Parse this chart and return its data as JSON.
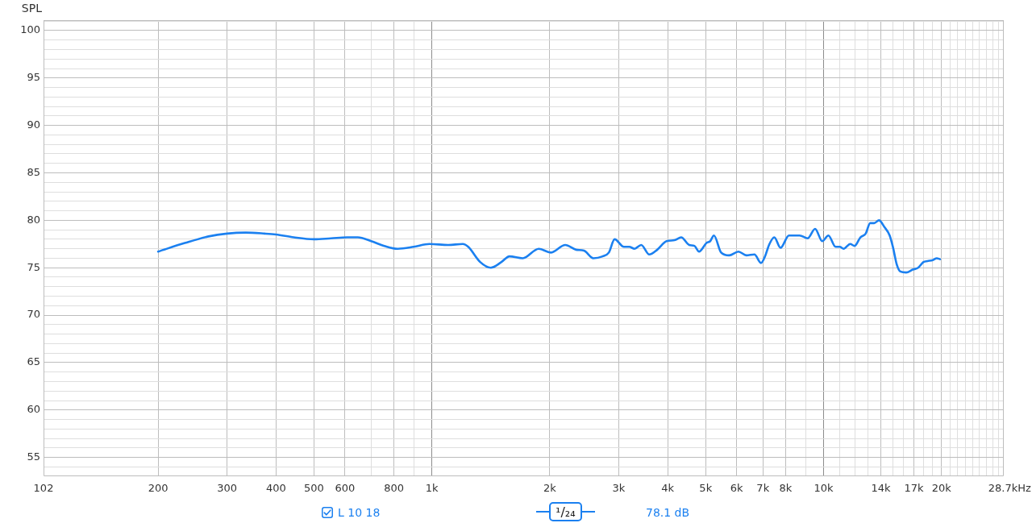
{
  "chart_data": {
    "type": "line",
    "ylabel": "SPL",
    "xlabel": "Hz",
    "log": "x",
    "grid": true,
    "legend": "bottom",
    "marker": "none",
    "line_style": "solid",
    "xlim": [
      102,
      28700
    ],
    "ylim": [
      53.1,
      101.1
    ],
    "xticks": [
      102,
      200,
      300,
      400,
      500,
      600,
      {
        "value": 700,
        "label": null
      },
      800,
      {
        "value": 900,
        "label": null
      },
      {
        "value": 1000,
        "label": "1k"
      },
      {
        "value": 2000,
        "label": "2k"
      },
      {
        "value": 3000,
        "label": "3k"
      },
      {
        "value": 4000,
        "label": "4k"
      },
      {
        "value": 5000,
        "label": "5k"
      },
      {
        "value": 6000,
        "label": "6k"
      },
      {
        "value": 7000,
        "label": "7k"
      },
      {
        "value": 8000,
        "label": "8k"
      },
      {
        "value": 9000,
        "label": null
      },
      {
        "value": 10000,
        "label": "10k"
      },
      {
        "value": 11000,
        "label": null
      },
      {
        "value": 12000,
        "label": null
      },
      {
        "value": 13000,
        "label": null
      },
      {
        "value": 14000,
        "label": "14k"
      },
      {
        "value": 15000,
        "label": null
      },
      {
        "value": 16000,
        "label": null
      },
      {
        "value": 17000,
        "label": "17k"
      },
      {
        "value": 18000,
        "label": null
      },
      {
        "value": 19000,
        "label": null
      },
      {
        "value": 20000,
        "label": "20k"
      },
      {
        "value": 21000,
        "label": null
      },
      {
        "value": 22000,
        "label": null
      },
      {
        "value": 23000,
        "label": null
      },
      {
        "value": 24000,
        "label": null
      },
      {
        "value": 25000,
        "label": null
      },
      {
        "value": 26000,
        "label": null
      },
      {
        "value": 27000,
        "label": null
      },
      {
        "value": 28000,
        "label": null
      },
      {
        "value": 28700,
        "label": "28.7k"
      }
    ],
    "yticks": [
      {
        "value": 54,
        "label": null
      },
      55,
      {
        "value": 56,
        "label": null
      },
      {
        "value": 57,
        "label": null
      },
      {
        "value": 58,
        "label": null
      },
      {
        "value": 59,
        "label": null
      },
      60,
      {
        "value": 61,
        "label": null
      },
      {
        "value": 62,
        "label": null
      },
      {
        "value": 63,
        "label": null
      },
      {
        "value": 64,
        "label": null
      },
      65,
      {
        "value": 66,
        "label": null
      },
      {
        "value": 67,
        "label": null
      },
      {
        "value": 68,
        "label": null
      },
      {
        "value": 69,
        "label": null
      },
      70,
      {
        "value": 71,
        "label": null
      },
      {
        "value": 72,
        "label": null
      },
      {
        "value": 73,
        "label": null
      },
      {
        "value": 74,
        "label": null
      },
      75,
      {
        "value": 76,
        "label": null
      },
      {
        "value": 77,
        "label": null
      },
      {
        "value": 78,
        "label": null
      },
      {
        "value": 79,
        "label": null
      },
      80,
      {
        "value": 81,
        "label": null
      },
      {
        "value": 82,
        "label": null
      },
      {
        "value": 83,
        "label": null
      },
      {
        "value": 84,
        "label": null
      },
      85,
      {
        "value": 86,
        "label": null
      },
      {
        "value": 87,
        "label": null
      },
      {
        "value": 88,
        "label": null
      },
      {
        "value": 89,
        "label": null
      },
      90,
      {
        "value": 91,
        "label": null
      },
      {
        "value": 92,
        "label": null
      },
      {
        "value": 93,
        "label": null
      },
      {
        "value": 94,
        "label": null
      },
      95,
      {
        "value": 96,
        "label": null
      },
      {
        "value": 97,
        "label": null
      },
      {
        "value": 98,
        "label": null
      },
      {
        "value": 99,
        "label": null
      },
      100,
      {
        "value": 101,
        "label": null
      }
    ],
    "x": [
      200,
      234,
      269,
      300,
      335,
      374,
      400,
      444,
      500,
      553,
      607,
      647,
      700,
      756,
      818,
      898,
      986,
      1101,
      1199,
      1238,
      1328,
      1413,
      1505,
      1578,
      1706,
      1874,
      2010,
      2191,
      2333,
      2445,
      2583,
      2728,
      2830,
      2927,
      3092,
      3191,
      3291,
      3423,
      3588,
      3761,
      3972,
      4163,
      4329,
      4538,
      4680,
      4808,
      5023,
      5135,
      5248,
      5475,
      5739,
      6061,
      6352,
      6658,
      6924,
      7088,
      7256,
      7484,
      7762,
      8157,
      8551,
      8686,
      9104,
      9511,
      9920,
      10285,
      10730,
      11000,
      11246,
      11695,
      12000,
      12413,
      12808,
      13150,
      13462,
      13849,
      14288,
      14745,
      15027,
      15382,
      15697,
      16243,
      16896,
      17430,
      17985,
      18413,
      18998,
      19450,
      19818
    ],
    "series": [
      {
        "name": "L 10 18",
        "color": "#1b80f0",
        "values": [
          76.7,
          77.6,
          78.3,
          78.6,
          78.7,
          78.6,
          78.5,
          78.2,
          78.0,
          78.1,
          78.2,
          78.2,
          77.8,
          77.3,
          77.0,
          77.2,
          77.5,
          77.4,
          77.5,
          77.2,
          75.6,
          75.0,
          75.6,
          76.2,
          76.0,
          77.0,
          76.6,
          77.4,
          76.9,
          76.8,
          76.0,
          76.2,
          76.6,
          78.0,
          77.2,
          77.2,
          77.0,
          77.4,
          76.4,
          76.9,
          77.8,
          77.9,
          78.2,
          77.4,
          77.3,
          76.7,
          77.6,
          77.8,
          78.4,
          76.6,
          76.3,
          76.7,
          76.3,
          76.4,
          75.5,
          76.2,
          77.4,
          78.2,
          77.1,
          78.4,
          78.4,
          78.4,
          78.1,
          79.1,
          77.8,
          78.4,
          77.2,
          77.2,
          77.0,
          77.5,
          77.3,
          78.2,
          78.6,
          79.7,
          79.7,
          80.0,
          79.3,
          78.4,
          77.2,
          75.3,
          74.6,
          74.5,
          74.8,
          75.0,
          75.6,
          75.7,
          75.8,
          76.0,
          75.9
        ]
      }
    ],
    "annotations": [
      "¹/₂₄",
      "78.1 dB"
    ]
  }
}
